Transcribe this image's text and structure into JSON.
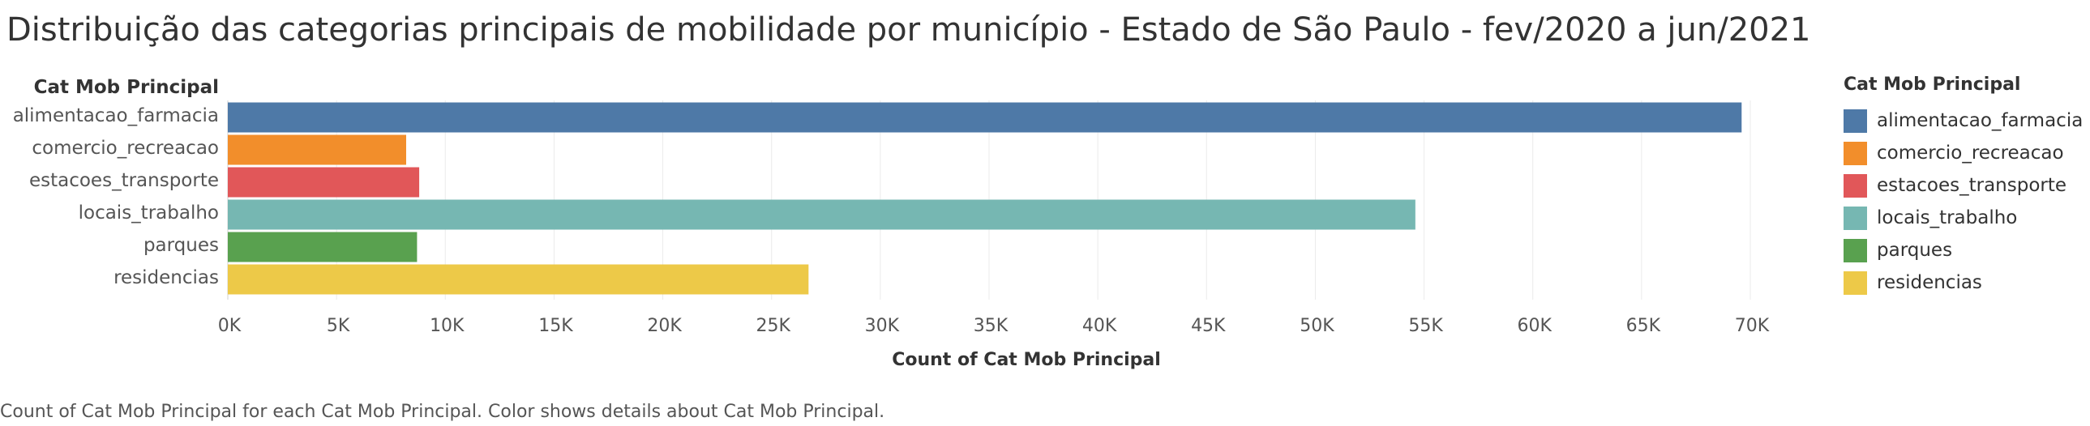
{
  "title": "Distribuição das categorias principais de mobilidade por município - Estado de São Paulo - fev/2020 a jun/2021",
  "caption": "Count of Cat Mob Principal for each Cat Mob Principal.  Color shows details about Cat Mob Principal.",
  "row_header": "Cat Mob Principal",
  "legend": {
    "title": "Cat Mob Principal",
    "items": [
      {
        "label": "alimentacao_farmacia",
        "color": "#4e79a7"
      },
      {
        "label": "comercio_recreacao",
        "color": "#f28e2b"
      },
      {
        "label": "estacoes_transporte",
        "color": "#e15759"
      },
      {
        "label": "locais_trabalho",
        "color": "#76b7b2"
      },
      {
        "label": "parques",
        "color": "#59a14f"
      },
      {
        "label": "residencias",
        "color": "#edc948"
      }
    ]
  },
  "chart_data": {
    "type": "bar",
    "orientation": "horizontal",
    "categories": [
      "alimentacao_farmacia",
      "comercio_recreacao",
      "estacoes_transporte",
      "locais_trabalho",
      "parques",
      "residencias"
    ],
    "values": [
      69600,
      8200,
      8800,
      54600,
      8700,
      26700
    ],
    "colors": [
      "#4e79a7",
      "#f28e2b",
      "#e15759",
      "#76b7b2",
      "#59a14f",
      "#edc948"
    ],
    "xlabel": "Count of Cat Mob Principal",
    "xlim": [
      0,
      70000
    ],
    "xticks": [
      0,
      5000,
      10000,
      15000,
      20000,
      25000,
      30000,
      35000,
      40000,
      45000,
      50000,
      55000,
      60000,
      65000,
      70000
    ],
    "xtick_labels": [
      "0K",
      "5K",
      "10K",
      "15K",
      "20K",
      "25K",
      "30K",
      "35K",
      "40K",
      "45K",
      "50K",
      "55K",
      "60K",
      "65K",
      "70K"
    ],
    "grid": true,
    "legend_position": "right"
  }
}
